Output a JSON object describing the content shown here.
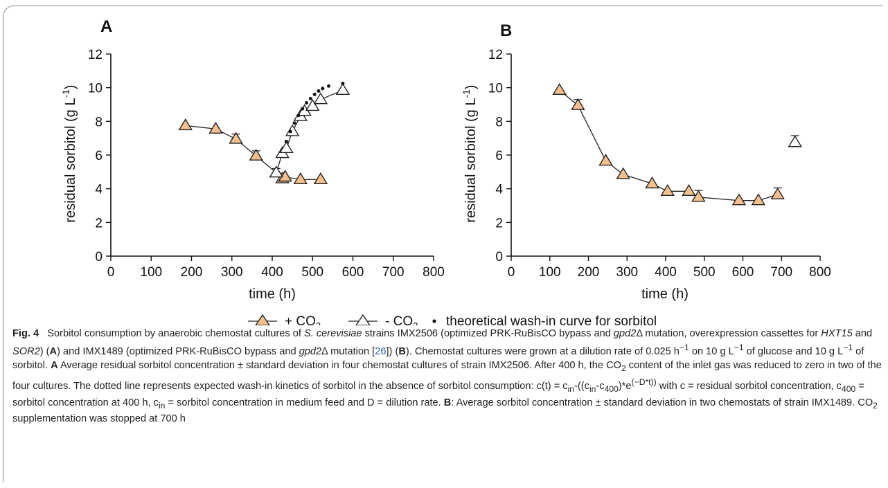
{
  "chart_data": [
    {
      "panel": "A",
      "type": "line",
      "xlabel": "time (h)",
      "ylabel": "residual sorbitol (g L-1)",
      "xlim": [
        0,
        800
      ],
      "ylim": [
        0,
        12
      ],
      "xticks": [
        0,
        100,
        200,
        300,
        400,
        500,
        600,
        700,
        800
      ],
      "yticks": [
        0,
        2,
        4,
        6,
        8,
        10,
        12
      ],
      "grid": false,
      "series": [
        {
          "name": "+ CO2",
          "marker": "triangle-filled",
          "color": "#f5c08c",
          "x": [
            185,
            260,
            310,
            360,
            410,
            425,
            432,
            470,
            520
          ],
          "y": [
            7.75,
            7.55,
            6.95,
            5.95,
            4.95,
            4.6,
            4.7,
            4.55,
            4.55
          ],
          "err": [
            0,
            0,
            0.3,
            0.3,
            0.25,
            0.2,
            0,
            0,
            0
          ]
        },
        {
          "name": "- CO2",
          "marker": "triangle-open",
          "color": "#ffffff",
          "x": [
            410,
            425,
            435,
            450,
            470,
            480,
            500,
            520,
            575
          ],
          "y": [
            4.95,
            6.1,
            6.4,
            7.4,
            8.3,
            8.6,
            8.9,
            9.3,
            9.85
          ],
          "err": [
            0,
            0,
            0,
            0,
            0,
            0,
            0,
            0,
            0
          ]
        },
        {
          "name": "theoretical wash-in curve for sorbitol",
          "marker": "dot",
          "color": "#111111",
          "x": [
            435,
            445,
            455,
            465,
            475,
            485,
            495,
            505,
            515,
            525,
            540,
            575
          ],
          "y": [
            6.8,
            7.4,
            7.9,
            8.35,
            8.75,
            9.1,
            9.35,
            9.6,
            9.8,
            9.95,
            10.1,
            10.25
          ]
        }
      ]
    },
    {
      "panel": "B",
      "type": "line",
      "xlabel": "time (h)",
      "ylabel": "residual sorbitol (g L-1)",
      "xlim": [
        0,
        800
      ],
      "ylim": [
        0,
        12
      ],
      "xticks": [
        0,
        100,
        200,
        300,
        400,
        500,
        600,
        700,
        800
      ],
      "yticks": [
        0,
        2,
        4,
        6,
        8,
        10,
        12
      ],
      "grid": false,
      "series": [
        {
          "name": "+ CO2",
          "marker": "triangle-filled",
          "color": "#f5c08c",
          "x": [
            125,
            173,
            245,
            290,
            365,
            405,
            460,
            485,
            590,
            640,
            690
          ],
          "y": [
            9.85,
            8.95,
            5.65,
            4.85,
            4.3,
            3.85,
            3.85,
            3.5,
            3.3,
            3.3,
            3.65
          ],
          "err": [
            0,
            0.35,
            0,
            0,
            0,
            0,
            0,
            0.4,
            0,
            0,
            0.4
          ]
        },
        {
          "name": "- CO2",
          "marker": "triangle-open",
          "color": "#ffffff",
          "x": [
            735
          ],
          "y": [
            6.75
          ],
          "err": [
            0.4
          ]
        }
      ]
    }
  ],
  "legend": {
    "items": [
      "+ CO",
      "- CO",
      "theoretical wash-in curve for sorbitol"
    ],
    "subscript": "2"
  },
  "caption": {
    "label": "Fig. 4",
    "text": "Sorbitol consumption by anaerobic chemostat cultures of S. cerevisiae strains IMX2506 (optimized PRK-RuBisCO bypass and gpd2Δ mutation, overexpression cassettes for HXT15 and SOR2) (A) and IMX1489 (optimized PRK-RuBisCO bypass and gpd2Δ mutation [26]) (B). Chemostat cultures were grown at a dilution rate of 0.025 h−1 on 10 g L−1 of glucose and 10 g L−1 of sorbitol. A Average residual sorbitol concentration ± standard deviation in four chemostat cultures of strain IMX2506. After 400 h, the CO2 content of the inlet gas was reduced to zero in two of the four cultures. The dotted line represents expected wash-in kinetics of sorbitol in the absence of sorbitol consumption: c(t) = cin-((cin-c400)*e(−D*t)) with c = residual sorbitol concentration, c400 = sorbitol concentration at 400 h, cin = sorbitol concentration in medium feed and D = dilution rate. B: Average sorbitol concentration ± standard deviation in two chemostats of strain IMX1489. CO2 supplementation was stopped at 700 h"
  }
}
